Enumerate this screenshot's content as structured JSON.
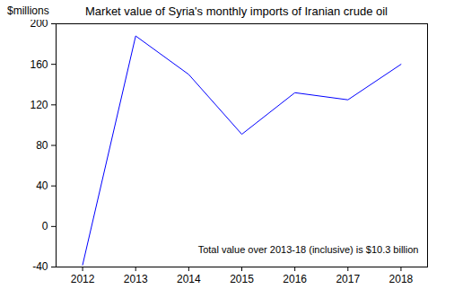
{
  "chart_data": {
    "type": "line",
    "title": "Market value of Syria's monthly imports of Iranian crude oil",
    "ylabel": "$millions",
    "annotation": "Total value over 2013-18 (inclusive) is $10.3 billion",
    "x": [
      2012,
      2013,
      2014,
      2015,
      2016,
      2017,
      2018
    ],
    "values": [
      -38,
      188,
      150,
      91,
      132,
      125,
      160
    ],
    "color": "#0000ff",
    "xlim": [
      2011.5,
      2018.5
    ],
    "xticks": [
      2012,
      2013,
      2014,
      2015,
      2016,
      2017,
      2018
    ],
    "ylim": [
      -40,
      200
    ],
    "yticks": [
      -40,
      0,
      40,
      80,
      120,
      160,
      200
    ],
    "grid": false
  }
}
